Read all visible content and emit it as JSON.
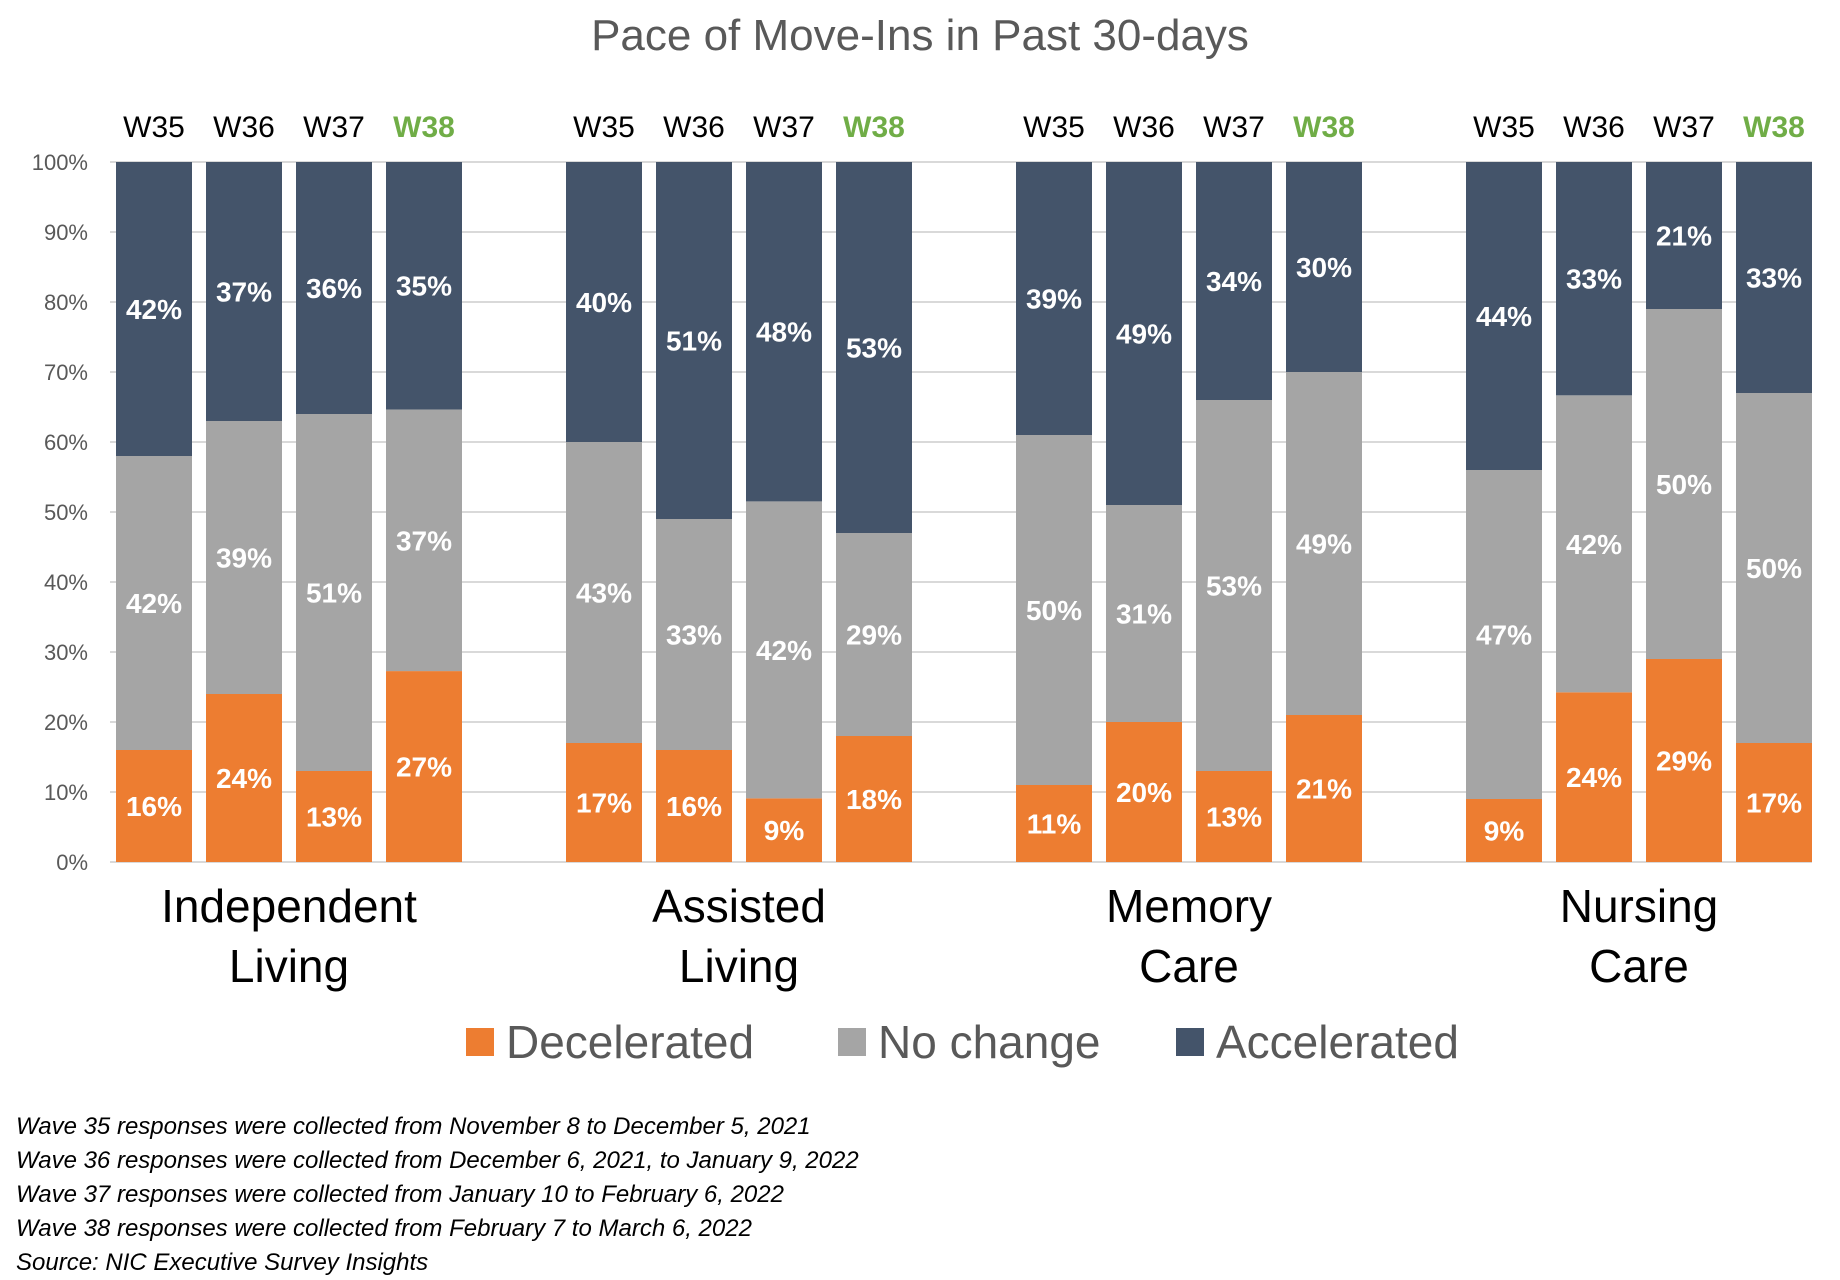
{
  "chart_data": {
    "type": "bar",
    "stacked": true,
    "title": "Pace of Move-Ins in Past 30-days",
    "ylim": [
      0,
      100
    ],
    "yticks": [
      "0%",
      "10%",
      "20%",
      "30%",
      "40%",
      "50%",
      "60%",
      "70%",
      "80%",
      "90%",
      "100%"
    ],
    "grid": true,
    "waves": [
      "W35",
      "W36",
      "W37",
      "W38"
    ],
    "highlight_wave": "W38",
    "groups": [
      {
        "label_lines": [
          "Independent",
          "Living"
        ],
        "bars": [
          {
            "wave": "W35",
            "decelerated": 16,
            "no_change": 42,
            "accelerated": 42
          },
          {
            "wave": "W36",
            "decelerated": 24,
            "no_change": 39,
            "accelerated": 37
          },
          {
            "wave": "W37",
            "decelerated": 13,
            "no_change": 51,
            "accelerated": 36
          },
          {
            "wave": "W38",
            "decelerated": 27,
            "no_change": 37,
            "accelerated": 35
          }
        ]
      },
      {
        "label_lines": [
          "Assisted",
          "Living"
        ],
        "bars": [
          {
            "wave": "W35",
            "decelerated": 17,
            "no_change": 43,
            "accelerated": 40
          },
          {
            "wave": "W36",
            "decelerated": 16,
            "no_change": 33,
            "accelerated": 51
          },
          {
            "wave": "W37",
            "decelerated": 9,
            "no_change": 42,
            "accelerated": 48
          },
          {
            "wave": "W38",
            "decelerated": 18,
            "no_change": 29,
            "accelerated": 53
          }
        ]
      },
      {
        "label_lines": [
          "Memory",
          "Care"
        ],
        "bars": [
          {
            "wave": "W35",
            "decelerated": 11,
            "no_change": 50,
            "accelerated": 39
          },
          {
            "wave": "W36",
            "decelerated": 20,
            "no_change": 31,
            "accelerated": 49
          },
          {
            "wave": "W37",
            "decelerated": 13,
            "no_change": 53,
            "accelerated": 34
          },
          {
            "wave": "W38",
            "decelerated": 21,
            "no_change": 49,
            "accelerated": 30
          }
        ]
      },
      {
        "label_lines": [
          "Nursing",
          "Care"
        ],
        "bars": [
          {
            "wave": "W35",
            "decelerated": 9,
            "no_change": 47,
            "accelerated": 44
          },
          {
            "wave": "W36",
            "decelerated": 24,
            "no_change": 42,
            "accelerated": 33
          },
          {
            "wave": "W37",
            "decelerated": 29,
            "no_change": 50,
            "accelerated": 21
          },
          {
            "wave": "W38",
            "decelerated": 17,
            "no_change": 50,
            "accelerated": 33
          }
        ]
      }
    ],
    "series": [
      {
        "key": "decelerated",
        "name": "Decelerated",
        "color": "#ed7d31"
      },
      {
        "key": "no_change",
        "name": "No change",
        "color": "#a5a5a5"
      },
      {
        "key": "accelerated",
        "name": "Accelerated",
        "color": "#44546a"
      }
    ],
    "legend_position": "bottom"
  },
  "notes": [
    "Wave 35 responses were collected from November 8 to December 5, 2021",
    "Wave 36 responses were collected from December 6, 2021, to January 9, 2022",
    "Wave 37 responses were collected from January 10 to February 6, 2022",
    "Wave 38 responses were collected from February 7 to March 6, 2022",
    "Source: NIC Executive Survey Insights"
  ]
}
